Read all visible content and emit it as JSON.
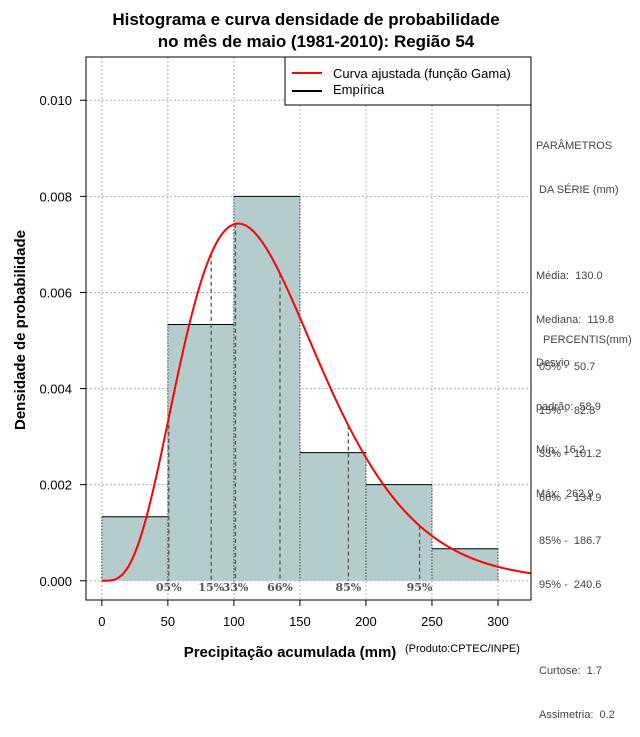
{
  "chart_data": {
    "type": "histogram",
    "title_line1": "Histograma e curva densidade de probabilidade",
    "title_line2": "no mês de maio (1981-2010): Região 54",
    "xlabel": "Precipitação acumulada (mm)",
    "ylabel": "Densidade de probabilidade",
    "credit": "(Produto:CPTEC/INPE)",
    "xlim": [
      -12,
      325
    ],
    "ylim": [
      -0.0004,
      0.0109
    ],
    "x_ticks": [
      0,
      50,
      100,
      150,
      200,
      250,
      300
    ],
    "x_tick_labels": [
      "0",
      "50",
      "100",
      "150",
      "200",
      "250",
      "300"
    ],
    "y_ticks": [
      0.0,
      0.002,
      0.004,
      0.006,
      0.008,
      0.01
    ],
    "y_tick_labels": [
      "0.000",
      "0.002",
      "0.004",
      "0.006",
      "0.008",
      "0.010"
    ],
    "grid": true,
    "bins": [
      {
        "start": 0,
        "end": 50,
        "density": 0.001333
      },
      {
        "start": 50,
        "end": 100,
        "density": 0.005333
      },
      {
        "start": 100,
        "end": 150,
        "density": 0.008
      },
      {
        "start": 150,
        "end": 200,
        "density": 0.002667
      },
      {
        "start": 200,
        "end": 250,
        "density": 0.002
      },
      {
        "start": 250,
        "end": 300,
        "density": 0.000667
      }
    ],
    "fitted_curve": {
      "name": "Curva ajustada (função Gama)",
      "distribution": "gamma",
      "shape": 4.87,
      "scale": 26.7,
      "color": "#ff0000"
    },
    "legend": {
      "position": "top-right",
      "items": [
        {
          "label": "Curva ajustada (função Gama)",
          "color": "#ff0000"
        },
        {
          "label": "Empírica",
          "color": "#000000"
        }
      ]
    },
    "percentile_markers": [
      {
        "label": "05%",
        "value": 50.7
      },
      {
        "label": "15%",
        "value": 82.8
      },
      {
        "label": "33%",
        "value": 101.2
      },
      {
        "label": "66%",
        "value": 134.9
      },
      {
        "label": "85%",
        "value": 186.7
      },
      {
        "label": "95%",
        "value": 240.6
      }
    ],
    "bar_color": "#b5cccc"
  },
  "side_panel": {
    "params_title_1": "PARÂMETROS",
    "params_title_2": " DA SÉRIE (mm)",
    "params": [
      "Média:  130.0",
      "Mediana:  119.8",
      "Desvio",
      "padrão:  58.9",
      "Mín:  16.2",
      "Máx:  262.9"
    ],
    "percentis_title": "PERCENTIS(mm)",
    "percentis": [
      "05% -  50.7",
      "15% -  82.8",
      "33% -  101.2",
      "66% -  134.9",
      "85% -  186.7",
      "95% -  240.6"
    ],
    "stats": [
      "Curtose:  1.7",
      "Assimetria:  0.2"
    ]
  }
}
